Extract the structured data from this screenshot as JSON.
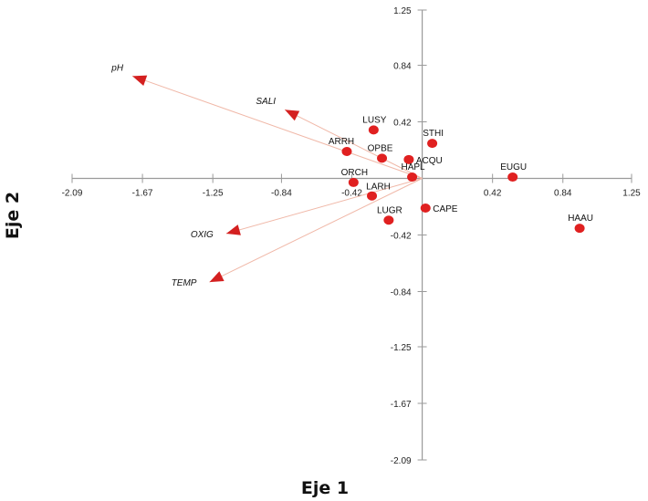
{
  "chart_data": {
    "type": "scatter",
    "title": "",
    "xlabel": "Eje 1",
    "ylabel": "Eje 2",
    "xlim": [
      -2.09,
      1.25
    ],
    "ylim": [
      -2.09,
      1.25
    ],
    "x_ticks": [
      "-2.09",
      "-1.67",
      "-1.25",
      "-0.84",
      "-0.42",
      "0.42",
      "0.84",
      "1.25"
    ],
    "x_tick_values": [
      -2.09,
      -1.67,
      -1.25,
      -0.84,
      -0.42,
      0.42,
      0.84,
      1.25
    ],
    "y_ticks": [
      "1.25",
      "0.84",
      "0.42",
      "-0.42",
      "-0.84",
      "-1.25",
      "-1.67",
      "-2.09"
    ],
    "y_tick_values": [
      1.25,
      0.84,
      0.42,
      -0.42,
      -0.84,
      -1.25,
      -1.67,
      -2.09
    ],
    "points": [
      {
        "label": "LUSY",
        "x": -0.29,
        "y": 0.36
      },
      {
        "label": "STHI",
        "x": 0.06,
        "y": 0.26
      },
      {
        "label": "ARRH",
        "x": -0.45,
        "y": 0.2
      },
      {
        "label": "OPBE",
        "x": -0.24,
        "y": 0.15
      },
      {
        "label": "ACQU",
        "x": -0.08,
        "y": 0.14
      },
      {
        "label": "HAPL",
        "x": -0.06,
        "y": 0.01
      },
      {
        "label": "EUGU",
        "x": 0.54,
        "y": 0.01
      },
      {
        "label": "ORCH",
        "x": -0.41,
        "y": -0.03
      },
      {
        "label": "LARH",
        "x": -0.3,
        "y": -0.13
      },
      {
        "label": "CAPE",
        "x": 0.02,
        "y": -0.22
      },
      {
        "label": "LUGR",
        "x": -0.2,
        "y": -0.31
      },
      {
        "label": "HAAU",
        "x": 0.94,
        "y": -0.37
      }
    ],
    "vectors": [
      {
        "label": "pH",
        "x": -1.73,
        "y": 0.76
      },
      {
        "label": "SALI",
        "x": -0.82,
        "y": 0.51
      },
      {
        "label": "OXIG",
        "x": -1.17,
        "y": -0.41
      },
      {
        "label": "TEMP",
        "x": -1.27,
        "y": -0.77
      }
    ],
    "colors": {
      "point": "#e02020",
      "arrow": "#d42020",
      "vector_line": "#f0b8a8",
      "axis": "#9a9a9a"
    }
  }
}
